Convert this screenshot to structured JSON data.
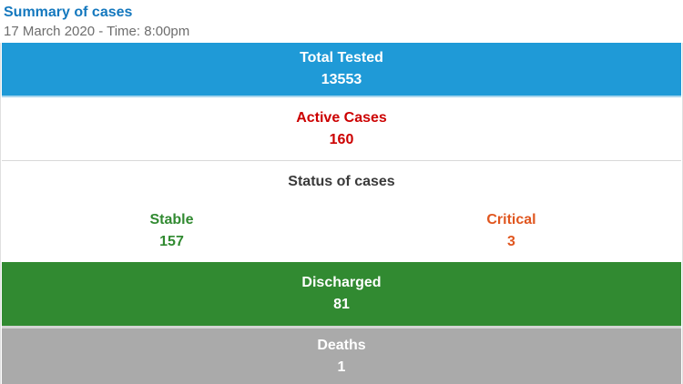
{
  "header": {
    "title": "Summary of cases",
    "date_line": "17 March 2020 - Time: 8:00pm"
  },
  "colors": {
    "total_tested_band": "#1f9ad7",
    "total_tested_underline": "#a9d6ee",
    "active_cases_text": "#cc0000",
    "stable_text": "#318a31",
    "critical_text": "#e0561f",
    "discharged_band": "#318a31",
    "deaths_band": "#aaaaaa",
    "header_title": "#1478be",
    "date_text": "#6d6d6d",
    "divider": "#d9d9d9"
  },
  "rows": {
    "total_tested": {
      "label": "Total Tested",
      "value": "13553"
    },
    "active_cases": {
      "label": "Active Cases",
      "value": "160"
    },
    "status": {
      "heading": "Status of cases",
      "stable": {
        "label": "Stable",
        "value": "157"
      },
      "critical": {
        "label": "Critical",
        "value": "3"
      }
    },
    "discharged": {
      "label": "Discharged",
      "value": "81"
    },
    "deaths": {
      "label": "Deaths",
      "value": "1"
    }
  }
}
